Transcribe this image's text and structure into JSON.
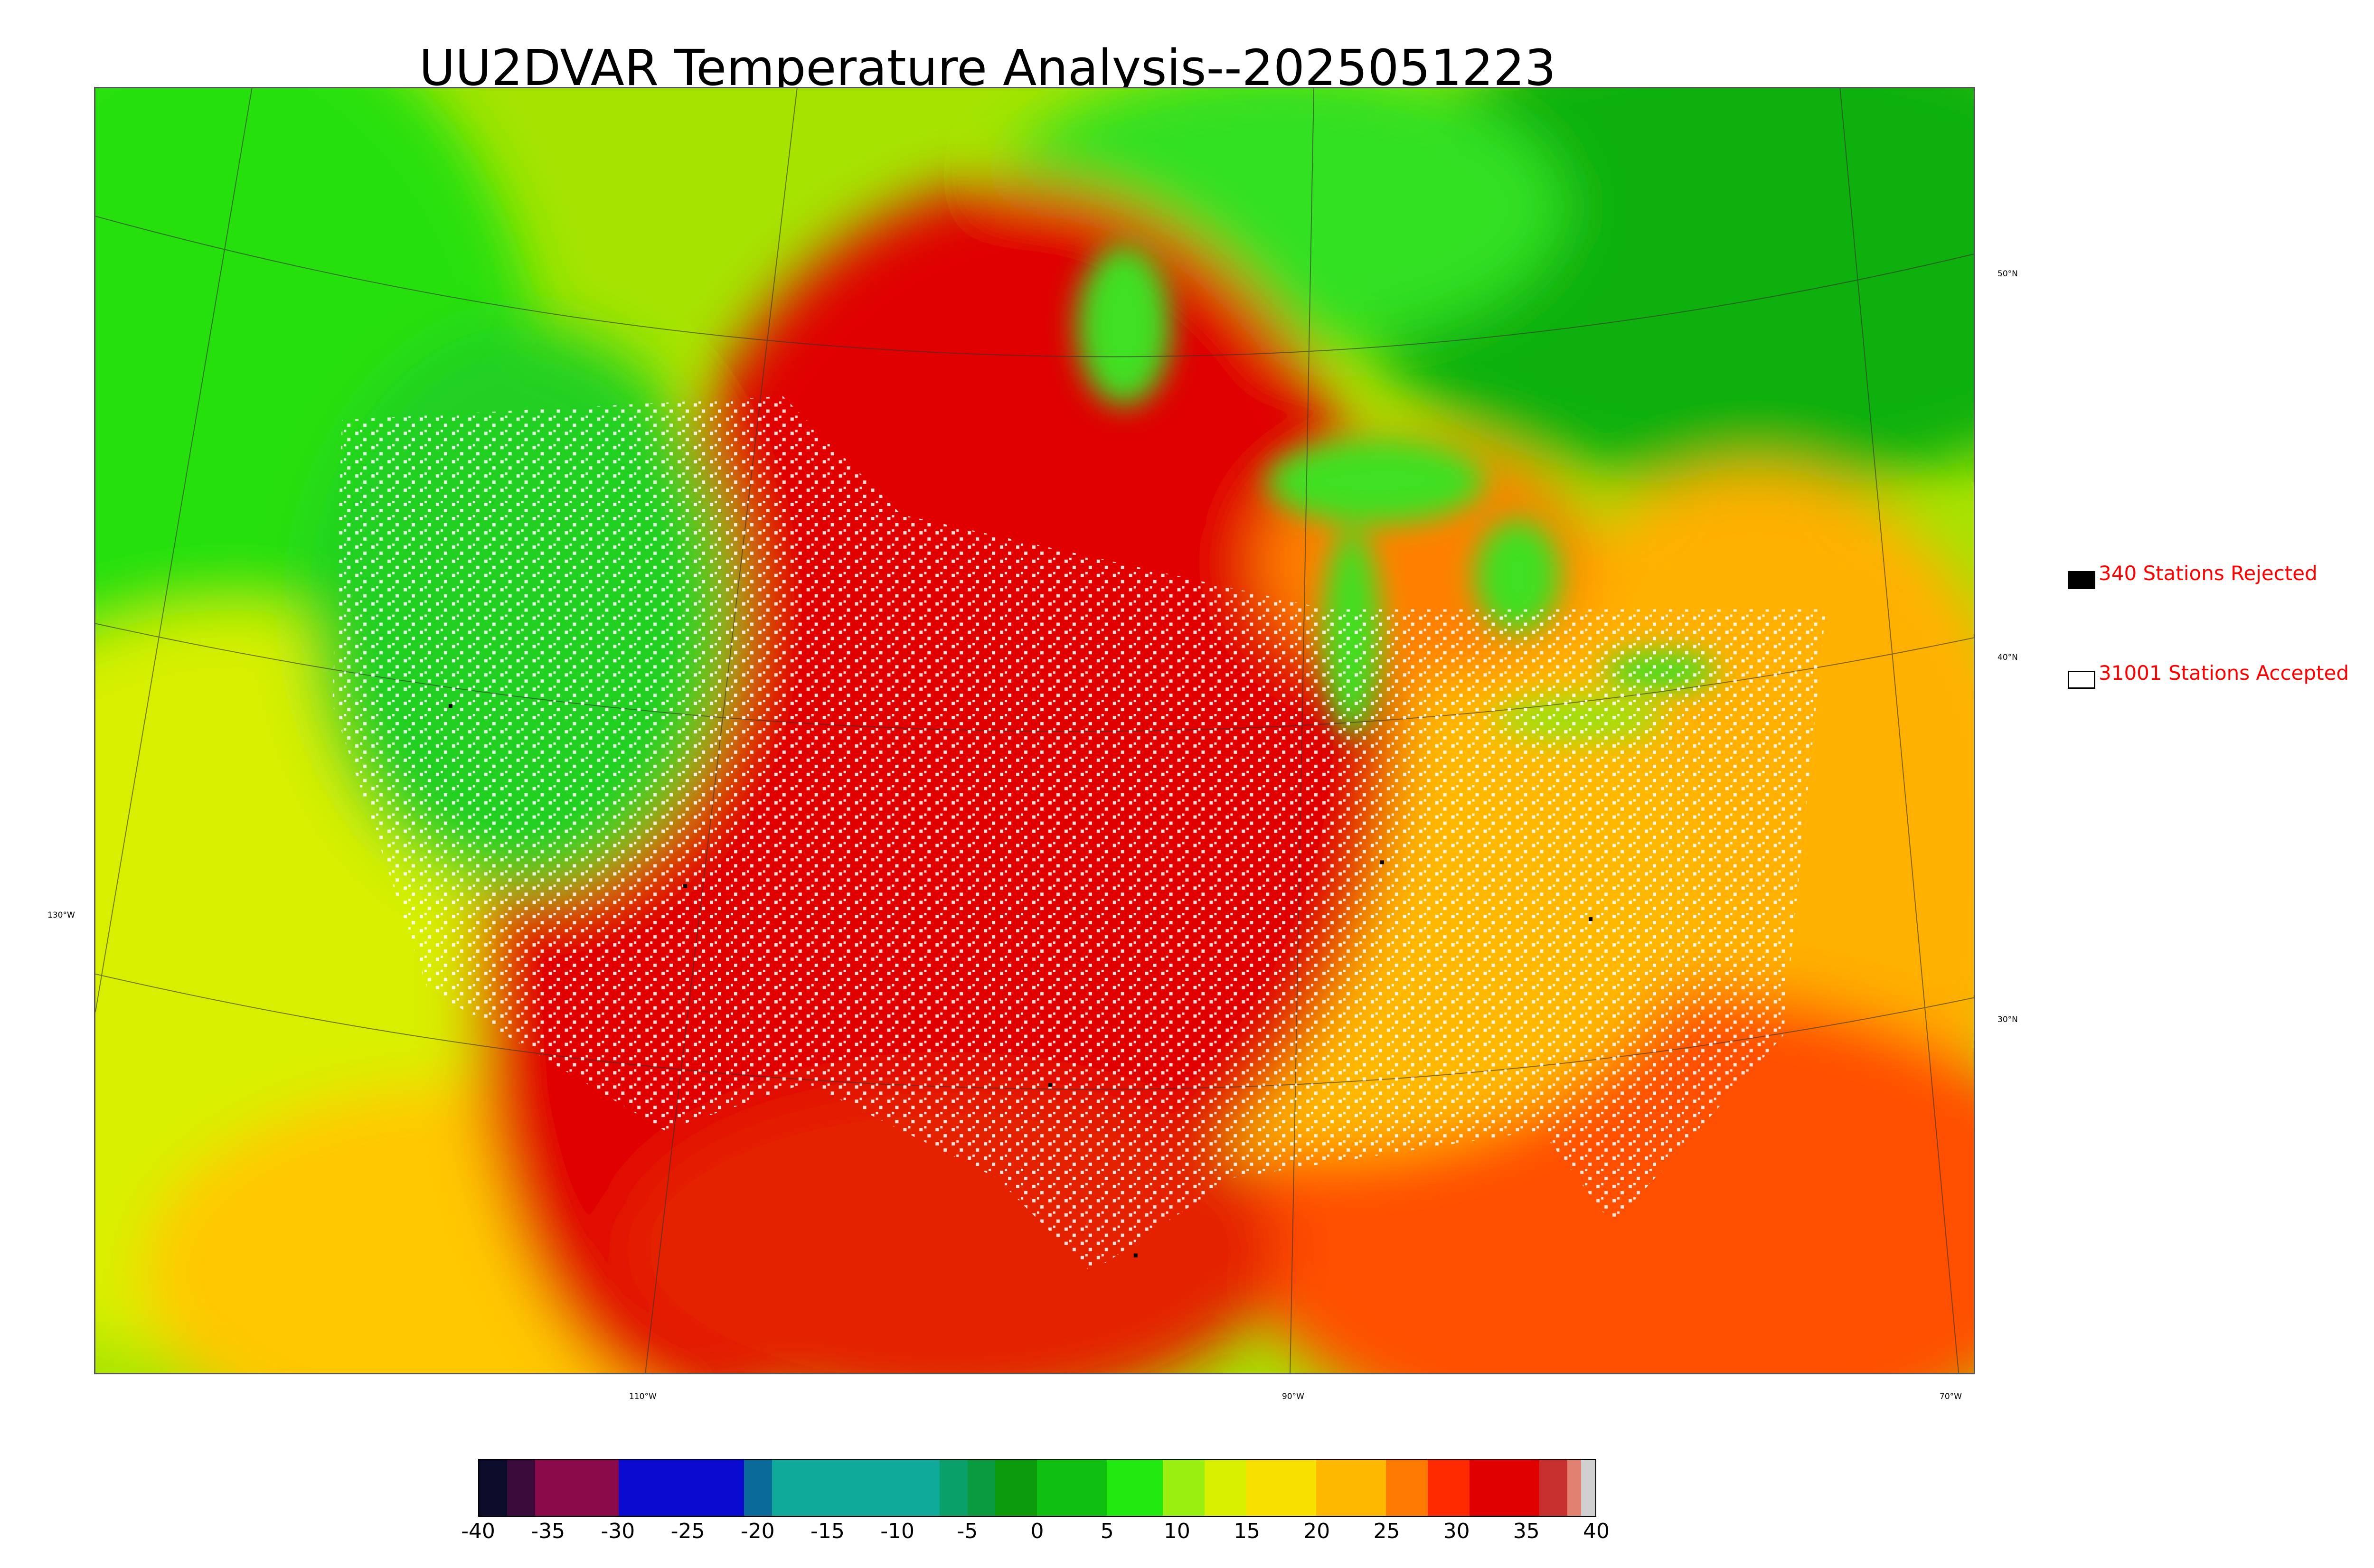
{
  "title": "UU2DVAR Temperature Analysis--2025051223",
  "map": {
    "lat_labels": [
      "50°N",
      "40°N",
      "30°N"
    ],
    "lon_labels": [
      "130°W",
      "110°W",
      "90°W",
      "70°W"
    ]
  },
  "legend": {
    "rejected": {
      "label": "340 Stations Rejected",
      "count": 340,
      "swatch_color": "#000000"
    },
    "accepted": {
      "label": "31001 Stations Accepted",
      "count": 31001,
      "swatch_color": "#ffffff"
    },
    "text_color": "#ff0000"
  },
  "colorbar": {
    "min": -40,
    "max": 40,
    "ticks": [
      "-40",
      "-35",
      "-30",
      "-25",
      "-20",
      "-15",
      "-10",
      "-5",
      "0",
      "5",
      "10",
      "15",
      "20",
      "25",
      "30",
      "35",
      "40"
    ],
    "bands": [
      {
        "from": -40,
        "to": -38,
        "color": "#0b0b2a"
      },
      {
        "from": -38,
        "to": -36,
        "color": "#3a0a3a"
      },
      {
        "from": -36,
        "to": -30,
        "color": "#8b0a4a"
      },
      {
        "from": -30,
        "to": -21,
        "color": "#0a0ad0"
      },
      {
        "from": -21,
        "to": -19,
        "color": "#0a6a9a"
      },
      {
        "from": -19,
        "to": -7,
        "color": "#10aa9a"
      },
      {
        "from": -7,
        "to": -5,
        "color": "#0aa06a"
      },
      {
        "from": -5,
        "to": -3,
        "color": "#0a9a40"
      },
      {
        "from": -3,
        "to": 0,
        "color": "#0a9a0a"
      },
      {
        "from": 0,
        "to": 5,
        "color": "#10c010"
      },
      {
        "from": 5,
        "to": 9,
        "color": "#20ea10"
      },
      {
        "from": 9,
        "to": 12,
        "color": "#9aee10"
      },
      {
        "from": 12,
        "to": 15,
        "color": "#d8f000"
      },
      {
        "from": 15,
        "to": 20,
        "color": "#f8e000"
      },
      {
        "from": 20,
        "to": 25,
        "color": "#ffb800"
      },
      {
        "from": 25,
        "to": 28,
        "color": "#ff7a00"
      },
      {
        "from": 28,
        "to": 31,
        "color": "#ff2a00"
      },
      {
        "from": 31,
        "to": 36,
        "color": "#e00000"
      },
      {
        "from": 36,
        "to": 38,
        "color": "#c83030"
      },
      {
        "from": 38,
        "to": 39,
        "color": "#e08070"
      },
      {
        "from": 39,
        "to": 40,
        "color": "#d0d0d0"
      }
    ]
  }
}
